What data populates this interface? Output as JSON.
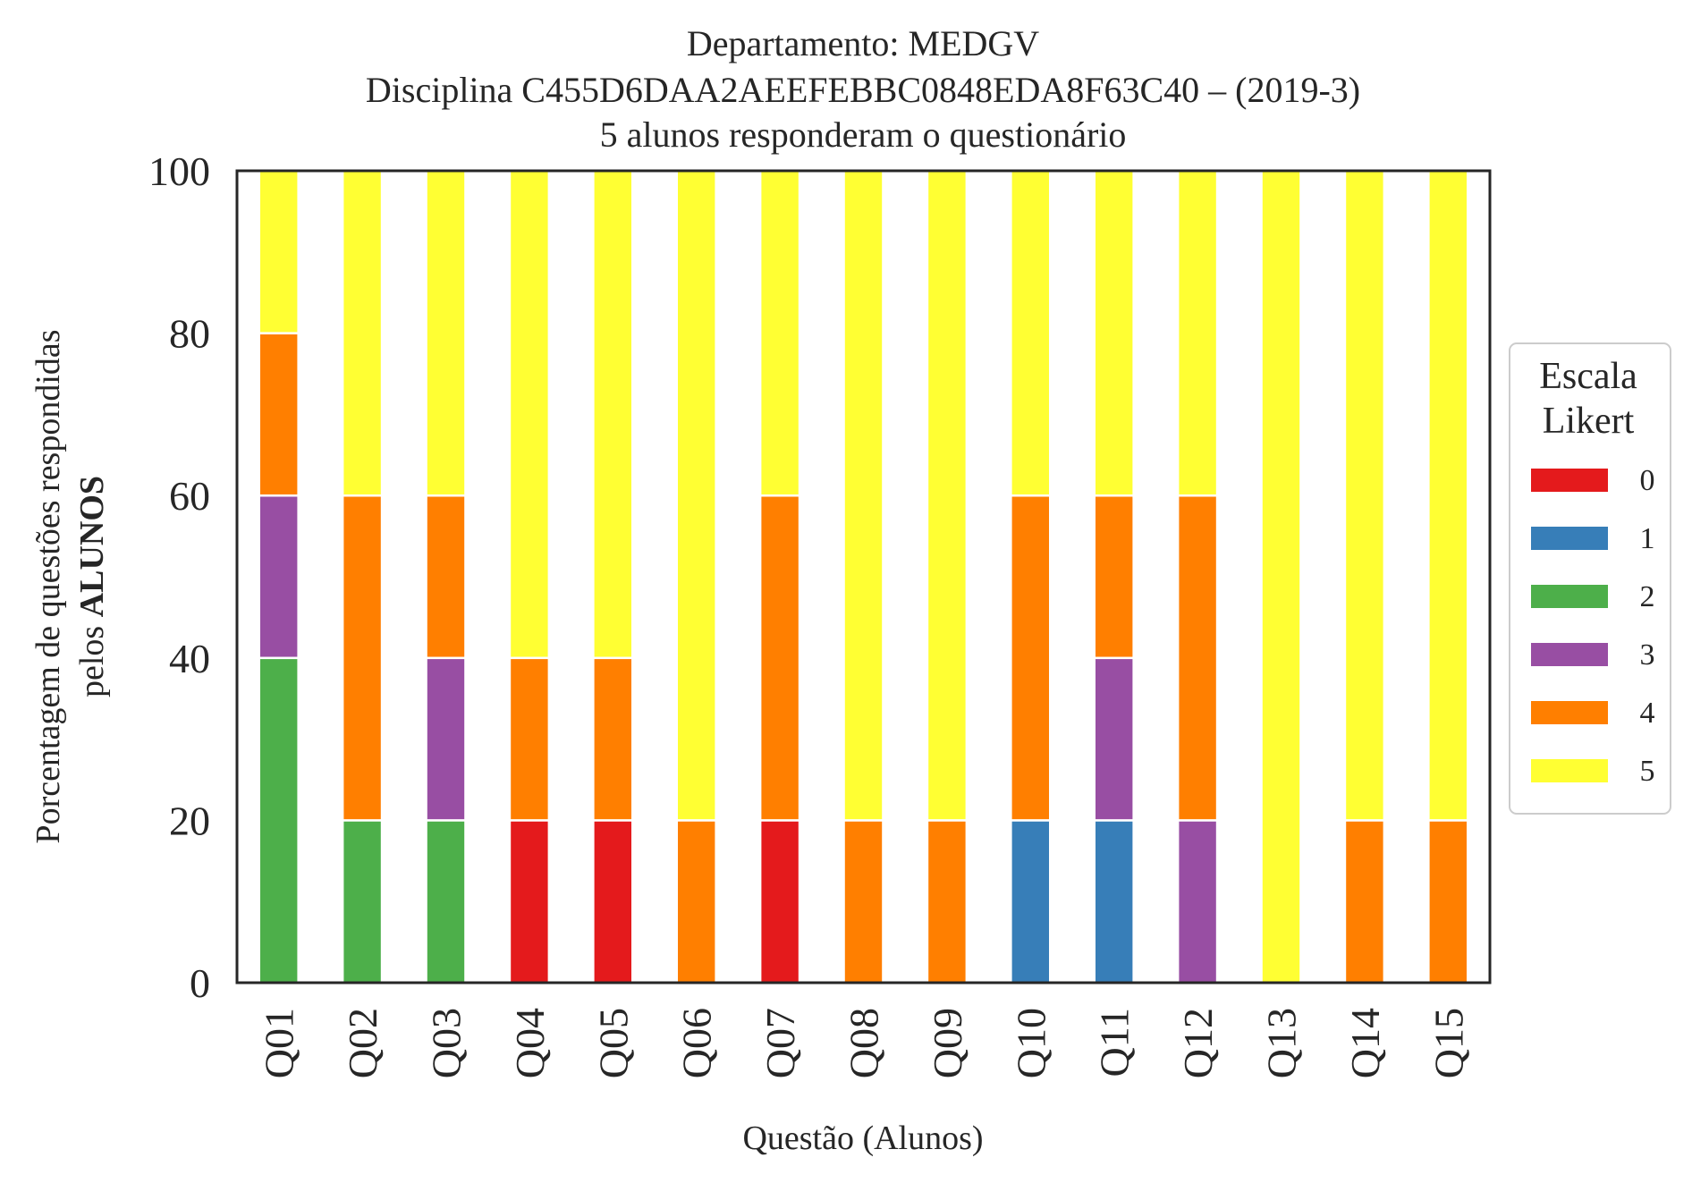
{
  "chart_data": {
    "type": "bar",
    "stacked": true,
    "title": [
      "Departamento: MEDGV",
      "Disciplina C455D6DAA2AEEFEBBC0848EDA8F63C40 – (2019-3)",
      "5 alunos responderam o questionário"
    ],
    "xlabel": "Questão (Alunos)",
    "ylabel_line1": "Porcentagem de questões respondidas",
    "ylabel_line2_prefix": "pelos ",
    "ylabel_line2_bold": "ALUNOS",
    "ylim": [
      0,
      100
    ],
    "yticks": [
      "0",
      "20",
      "40",
      "60",
      "80",
      "100"
    ],
    "categories": [
      "Q01",
      "Q02",
      "Q03",
      "Q04",
      "Q05",
      "Q06",
      "Q07",
      "Q08",
      "Q09",
      "Q10",
      "Q11",
      "Q12",
      "Q13",
      "Q14",
      "Q15"
    ],
    "series": [
      {
        "name": "0",
        "color": "#e41a1c",
        "values": [
          0,
          0,
          0,
          20,
          20,
          0,
          20,
          0,
          0,
          0,
          0,
          0,
          0,
          0,
          0
        ]
      },
      {
        "name": "1",
        "color": "#377eb8",
        "values": [
          0,
          0,
          0,
          0,
          0,
          0,
          0,
          0,
          0,
          20,
          20,
          0,
          0,
          0,
          0
        ]
      },
      {
        "name": "2",
        "color": "#4daf4a",
        "values": [
          40,
          20,
          20,
          0,
          0,
          0,
          0,
          0,
          0,
          0,
          0,
          0,
          0,
          0,
          0
        ]
      },
      {
        "name": "3",
        "color": "#984ea3",
        "values": [
          20,
          0,
          20,
          0,
          0,
          0,
          0,
          0,
          0,
          0,
          20,
          20,
          0,
          0,
          0
        ]
      },
      {
        "name": "4",
        "color": "#ff7f00",
        "values": [
          20,
          40,
          20,
          20,
          20,
          20,
          40,
          20,
          20,
          40,
          20,
          40,
          0,
          20,
          20
        ]
      },
      {
        "name": "5",
        "color": "#ffff33",
        "values": [
          20,
          40,
          40,
          60,
          60,
          80,
          40,
          80,
          80,
          40,
          40,
          40,
          100,
          80,
          80
        ]
      }
    ],
    "legend": {
      "title_line1": "Escala",
      "title_line2": "Likert",
      "placement": "right"
    },
    "grid": false
  }
}
